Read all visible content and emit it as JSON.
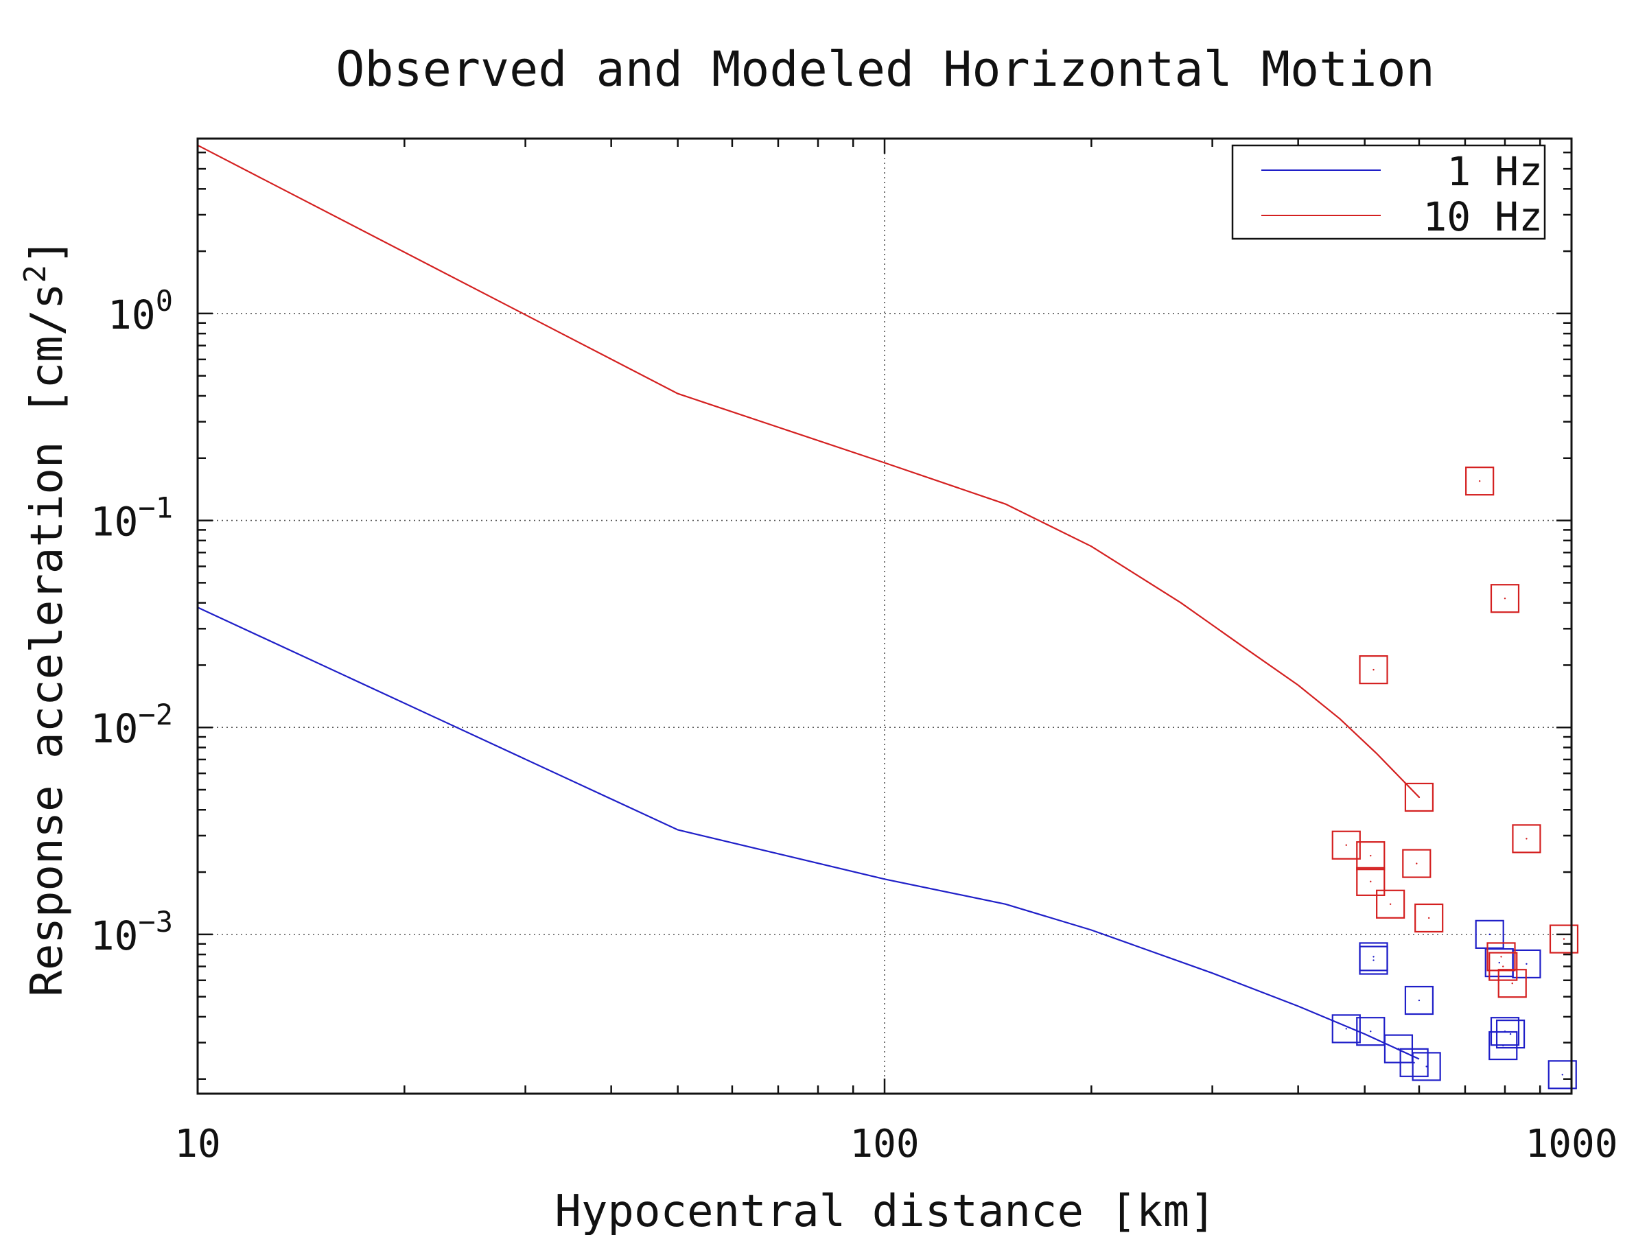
{
  "chart_data": {
    "type": "line",
    "title": "Observed and Modeled Horizontal Motion",
    "xlabel": "Hypocentral distance [km]",
    "ylabel": {
      "text": "Response acceleration [cm/s",
      "superscript": "2",
      "suffix": "]"
    },
    "x_scale": "log",
    "y_scale": "log",
    "xlim": [
      10,
      1000
    ],
    "ylim": [
      0.00017,
      7
    ],
    "x_ticks": [
      {
        "value": 10,
        "label": "10"
      },
      {
        "value": 100,
        "label": "100"
      },
      {
        "value": 1000,
        "label": "1000"
      }
    ],
    "y_ticks": [
      {
        "value": 0.001,
        "base": "10",
        "exponent": "−3"
      },
      {
        "value": 0.01,
        "base": "10",
        "exponent": "−2"
      },
      {
        "value": 0.1,
        "base": "10",
        "exponent": "−1"
      },
      {
        "value": 1,
        "base": "10",
        "exponent": "0"
      }
    ],
    "grid": true,
    "legend_position": "top-right",
    "series": [
      {
        "name": "1 Hz",
        "color": "#1f1fc8",
        "x": [
          10,
          50,
          100,
          150,
          200,
          300,
          400,
          500,
          600
        ],
        "y": [
          0.038,
          0.0032,
          0.00185,
          0.0014,
          0.00105,
          0.00065,
          0.00045,
          0.00033,
          0.00025
        ]
      },
      {
        "name": "10 Hz",
        "color": "#d42020",
        "x": [
          10,
          50,
          100,
          150,
          200,
          270,
          330,
          400,
          460,
          520,
          600
        ],
        "y": [
          6.5,
          0.41,
          0.19,
          0.12,
          0.075,
          0.04,
          0.025,
          0.016,
          0.011,
          0.0075,
          0.0046
        ]
      }
    ],
    "observations": [
      {
        "series": "1 Hz",
        "color": "#1f1fc8",
        "points": [
          [
            470,
            0.00035
          ],
          [
            510,
            0.00034
          ],
          [
            515,
            0.00078
          ],
          [
            515,
            0.00075
          ],
          [
            560,
            0.00028
          ],
          [
            590,
            0.00024
          ],
          [
            600,
            0.00048
          ],
          [
            615,
            0.00023
          ],
          [
            760,
            0.001
          ],
          [
            785,
            0.00073
          ],
          [
            795,
            0.00029
          ],
          [
            800,
            0.00034
          ],
          [
            815,
            0.00033
          ],
          [
            860,
            0.00072
          ],
          [
            970,
            0.00021
          ]
        ]
      },
      {
        "series": "10 Hz",
        "color": "#d42020",
        "points": [
          [
            470,
            0.0027
          ],
          [
            510,
            0.0024
          ],
          [
            510,
            0.0018
          ],
          [
            515,
            0.019
          ],
          [
            545,
            0.0014
          ],
          [
            595,
            0.0022
          ],
          [
            600,
            0.0046
          ],
          [
            620,
            0.0012
          ],
          [
            735,
            0.155
          ],
          [
            790,
            0.00078
          ],
          [
            795,
            0.0007
          ],
          [
            800,
            0.042
          ],
          [
            820,
            0.00058
          ],
          [
            860,
            0.0029
          ],
          [
            975,
            0.00095
          ]
        ]
      }
    ]
  }
}
